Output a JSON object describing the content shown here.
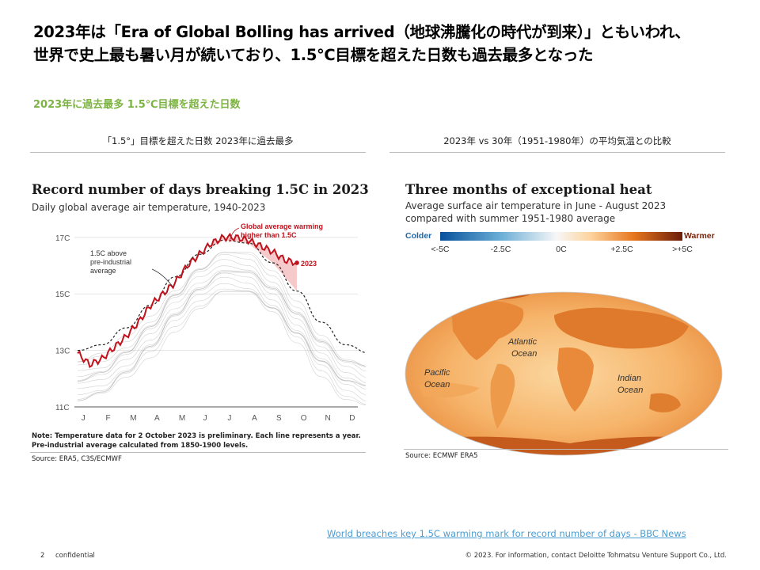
{
  "title": {
    "line1": "2023年は「Era of Global Bolling has arrived（地球沸騰化の時代が到来）」ともいわれ、",
    "line2": "世界で史上最も暑い月が続いており、1.5℃目標を超えた日数も過去最多となった"
  },
  "subhead": "2023年に過去最多 1.5℃目標を超えた日数",
  "left_panel": {
    "caption": "「1.5°」目標を超えた日数 2023年に過去最多",
    "figure_title": "Record number of days breaking 1.5C in 2023",
    "figure_subtitle": "Daily global average air temperature, 1940-2023",
    "annotation_preindustrial": [
      "1.5C above",
      "pre-industrial",
      "average"
    ],
    "annotation_global": [
      "Global average warming",
      "higher than 1.5C"
    ],
    "label_2023": "2023",
    "note_line1": "Note: Temperature data for 2 October 2023 is preliminary. Each line represents a year.",
    "note_line2": "Pre-industrial average calculated from 1850-1900 levels.",
    "source": "Source: ERA5, C3S/ECMWF"
  },
  "right_panel": {
    "caption": "2023年 vs 30年（1951-1980年）の平均気温との比較",
    "figure_title": "Three months of exceptional heat",
    "figure_subtitle_line1": "Average surface air temperature in June - August 2023",
    "figure_subtitle_line2": "compared with summer 1951-1980 average",
    "legend_colder": "Colder",
    "legend_warmer": "Warmer",
    "legend_ticks": [
      "<-5C",
      "-2.5C",
      "0C",
      "+2.5C",
      ">+5C"
    ],
    "ocean_labels": {
      "atlantic": [
        "Atlantic",
        "Ocean"
      ],
      "pacific": [
        "Pacific",
        "Ocean"
      ],
      "indian": [
        "Indian",
        "Ocean"
      ]
    },
    "source": "Source: ECMWF ERA5"
  },
  "link_text": "World breaches key 1.5C warming mark for record number of days - BBC News",
  "footer": {
    "page_number": "2",
    "confidential": "confidential",
    "copyright": "© 2023. For information, contact Deloitte Tohmatsu Venture Support Co., Ltd."
  },
  "colors": {
    "accent_green": "#7cb342",
    "red_2023": "#c0121c",
    "link_blue": "#4a9dd3"
  },
  "chart_data": {
    "type": "line",
    "title": "Record number of days breaking 1.5C in 2023",
    "subtitle": "Daily global average air temperature, 1940-2023",
    "x_ticks": [
      "J",
      "F",
      "M",
      "A",
      "M",
      "J",
      "J",
      "A",
      "S",
      "O",
      "N",
      "D"
    ],
    "y_ticks": [
      "17C",
      "15C",
      "13C",
      "11C"
    ],
    "y_tick_values": [
      17,
      15,
      13,
      11
    ],
    "ylim": [
      11,
      17.5
    ],
    "grid": true,
    "series": [
      {
        "name": "2023",
        "x": [
          0,
          0.5,
          1,
          1.5,
          2,
          2.5,
          3,
          3.5,
          4,
          4.5,
          5,
          5.5,
          6,
          6.5,
          7,
          7.5,
          8,
          8.5,
          9
        ],
        "values": [
          12.9,
          12.5,
          12.7,
          13.1,
          13.5,
          14.0,
          14.6,
          15.0,
          15.4,
          16.0,
          16.4,
          16.8,
          17.0,
          17.0,
          16.9,
          16.7,
          16.5,
          16.2,
          16.1
        ]
      },
      {
        "name": "1.5C above pre-industrial average",
        "x": [
          0,
          1,
          2,
          3,
          4,
          5,
          6,
          7,
          8,
          9,
          10,
          11,
          12
        ],
        "values": [
          13.0,
          13.2,
          13.8,
          14.6,
          15.6,
          16.4,
          16.9,
          16.8,
          16.1,
          15.1,
          14.0,
          13.2,
          12.9
        ]
      }
    ]
  }
}
